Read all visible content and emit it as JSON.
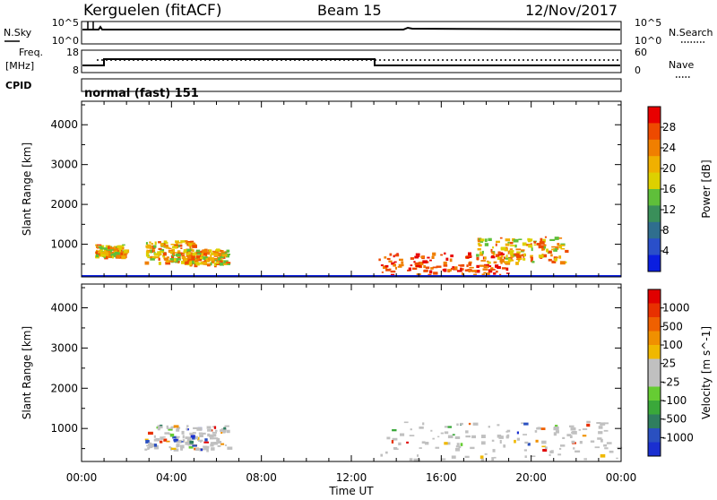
{
  "header": {
    "station": "Kerguelen (fitACF)",
    "beam": "Beam 15",
    "date": "12/Nov/2017"
  },
  "top_panels": {
    "nsky_label": "N.Sky",
    "nsky_ticks": [
      "10^5",
      "10^0"
    ],
    "nsearch_label": "N.Search",
    "freq_label_1": "Freq.",
    "freq_label_2": "[MHz]",
    "freq_ticks": [
      "18",
      "8"
    ],
    "nave_ticks": [
      "60",
      "0"
    ],
    "nave_label": "Nave",
    "cpid_label": "CPID",
    "cpid_value": "normal (fast) 151"
  },
  "chart_data": [
    {
      "type": "heatmap",
      "panel": "power",
      "ylabel": "Slant Range [km]",
      "y_ticks": [
        "4000",
        "3000",
        "2000",
        "1000"
      ],
      "ylim": [
        180,
        4590
      ],
      "x_ticks": [
        "00:00",
        "04:00",
        "08:00",
        "12:00",
        "16:00",
        "20:00",
        "00:00"
      ],
      "xlim_hours": [
        0,
        24
      ],
      "colorbar": {
        "label": "Power [dB]",
        "ticks": [
          "28",
          "24",
          "20",
          "16",
          "12",
          "8",
          "4"
        ],
        "colors": [
          "#0a1ee0",
          "#2a4fc9",
          "#2f6e8e",
          "#3a8f5a",
          "#5fbf3a",
          "#ddd000",
          "#f0b000",
          "#f07f00",
          "#ee4a00",
          "#e80000"
        ]
      },
      "echo_regions": [
        {
          "t0": 0.6,
          "t1": 1.9,
          "r0": 700,
          "r1": 1000,
          "level": "high"
        },
        {
          "t0": 2.8,
          "t1": 5.0,
          "r0": 550,
          "r1": 1100,
          "level": "high"
        },
        {
          "t0": 4.5,
          "t1": 6.5,
          "r0": 500,
          "r1": 900,
          "level": "high"
        },
        {
          "t0": 13.2,
          "t1": 19.0,
          "r0": 250,
          "r1": 800,
          "level": "very high"
        },
        {
          "t0": 17.5,
          "t1": 21.5,
          "r0": 550,
          "r1": 1200,
          "level": "high"
        }
      ]
    },
    {
      "type": "heatmap",
      "panel": "velocity",
      "ylabel": "Slant Range [km]",
      "y_ticks": [
        "4000",
        "3000",
        "2000",
        "1000"
      ],
      "ylim": [
        180,
        4590
      ],
      "x_ticks": [
        "00:00",
        "04:00",
        "08:00",
        "12:00",
        "16:00",
        "20:00",
        "00:00"
      ],
      "xlim_hours": [
        0,
        24
      ],
      "xlabel": "Time UT",
      "colorbar": {
        "label": "Velocity [m s^-1]",
        "ticks": [
          "1000",
          "500",
          "100",
          "25",
          "-25",
          "-100",
          "-500",
          "-1000"
        ],
        "colors": [
          "#1a2fd0",
          "#2a50c0",
          "#2f7e5f",
          "#3aa83a",
          "#66cc33",
          "#c0c0c0",
          "#c0c0c0",
          "#f0b800",
          "#f09000",
          "#ef6000",
          "#e83000",
          "#e00000"
        ]
      },
      "echo_regions": [
        {
          "t0": 2.8,
          "t1": 6.5,
          "r0": 500,
          "r1": 1100,
          "level": "low velocity"
        },
        {
          "t0": 13.2,
          "t1": 24.0,
          "r0": 250,
          "r1": 1200,
          "level": "low velocity"
        }
      ]
    }
  ]
}
